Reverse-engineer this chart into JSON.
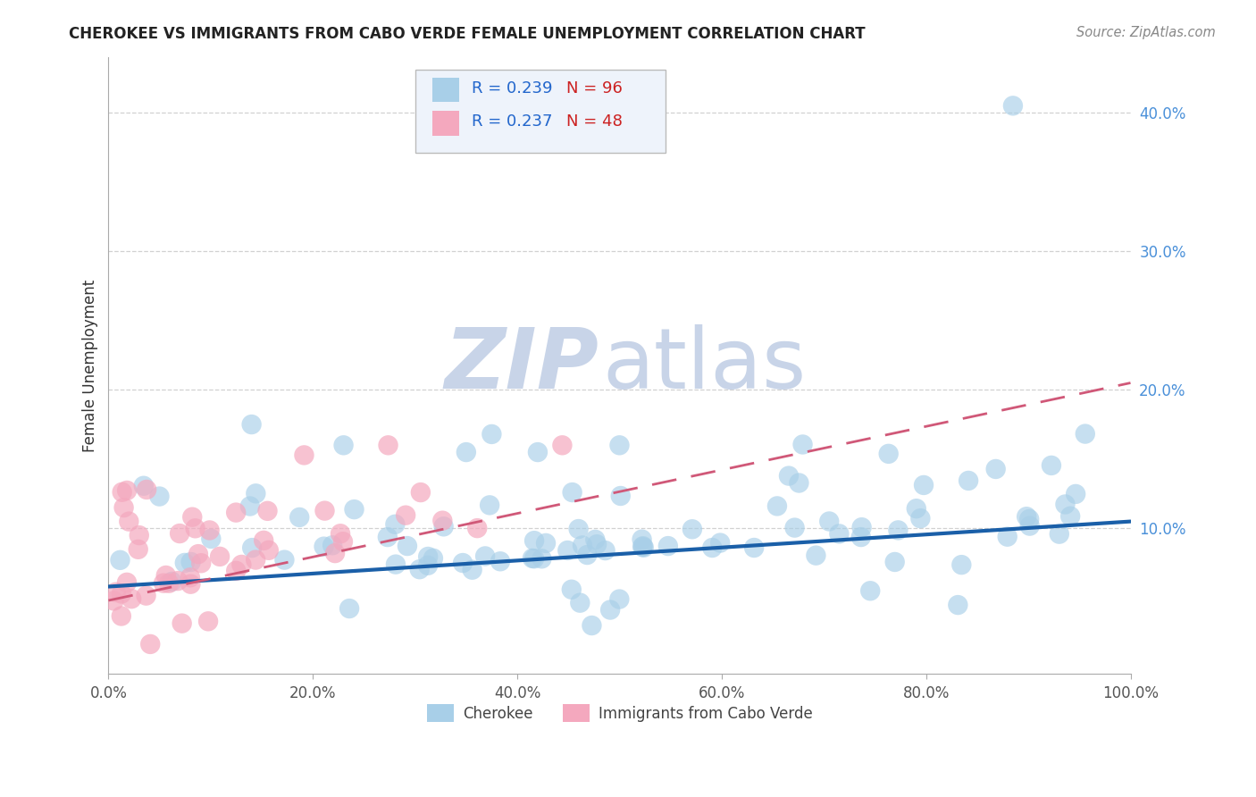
{
  "title": "CHEROKEE VS IMMIGRANTS FROM CABO VERDE FEMALE UNEMPLOYMENT CORRELATION CHART",
  "source": "Source: ZipAtlas.com",
  "ylabel": "Female Unemployment",
  "xlim": [
    0.0,
    1.0
  ],
  "ylim": [
    -0.005,
    0.44
  ],
  "xtick_labels": [
    "0.0%",
    "20.0%",
    "40.0%",
    "60.0%",
    "80.0%",
    "100.0%"
  ],
  "xtick_vals": [
    0.0,
    0.2,
    0.4,
    0.6,
    0.8,
    1.0
  ],
  "ytick_labels": [
    "10.0%",
    "20.0%",
    "30.0%",
    "40.0%"
  ],
  "ytick_vals": [
    0.1,
    0.2,
    0.3,
    0.4
  ],
  "series1_label": "Cherokee",
  "series1_color": "#a8cfe8",
  "series1_R": "0.239",
  "series1_N": "96",
  "series2_label": "Immigrants from Cabo Verde",
  "series2_color": "#f4a8be",
  "series2_R": "0.237",
  "series2_N": "48",
  "trendline1_color": "#1a5fa8",
  "trendline1_start_y": 0.058,
  "trendline1_end_y": 0.105,
  "trendline2_color": "#d05878",
  "trendline2_start_y": 0.048,
  "trendline2_end_y": 0.205,
  "background_color": "#ffffff",
  "grid_color": "#cccccc",
  "legend_bg_color": "#eef3fb",
  "legend_border_color": "#bbbbbb",
  "legend_R_color": "#2266cc",
  "legend_N_color": "#cc2222",
  "title_color": "#222222",
  "source_color": "#888888",
  "ytick_color": "#4a90d9",
  "xtick_color": "#555555",
  "ylabel_color": "#333333",
  "watermark_zip_color": "#c8d4e8",
  "watermark_atlas_color": "#c8d4e8",
  "spine_color": "#aaaaaa"
}
